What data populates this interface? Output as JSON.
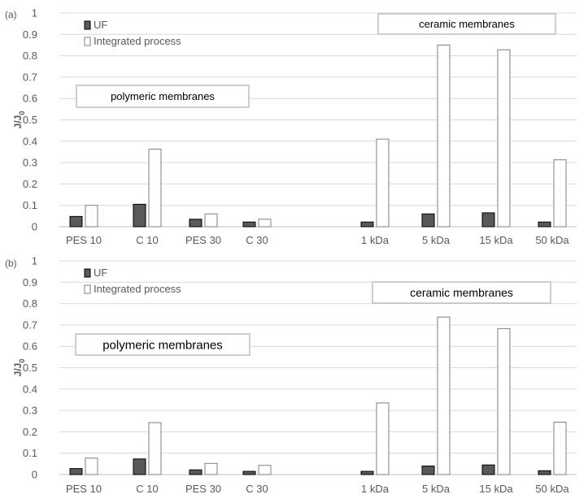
{
  "chart_data": [
    {
      "type": "bar",
      "panel_label": "(a)",
      "ylabel": "J/J",
      "ylabel_sub": "0",
      "ylim": [
        0,
        1
      ],
      "yticks": [
        "0",
        "0.1",
        "0.2",
        "0.3",
        "0.4",
        "0.5",
        "0.6",
        "0.7",
        "0.8",
        "0.9",
        "1"
      ],
      "grid": true,
      "legend_position": "top-left",
      "categories": [
        "PES 10",
        "C 10",
        "PES 30",
        "C 30",
        "",
        "1 kDa",
        "5 kDa",
        "15 kDa",
        "50 kDa"
      ],
      "series": [
        {
          "name": "UF",
          "color": "#595959",
          "values": [
            0.048,
            0.105,
            0.035,
            0.022,
            null,
            0.022,
            0.06,
            0.065,
            0.022
          ]
        },
        {
          "name": "Integrated process",
          "color": "#ffffff",
          "values": [
            0.1,
            0.363,
            0.06,
            0.035,
            null,
            0.41,
            0.85,
            0.828,
            0.313
          ]
        }
      ],
      "annotations": [
        "polymeric membranes",
        "ceramic membranes"
      ]
    },
    {
      "type": "bar",
      "panel_label": "(b)",
      "ylabel": "J/J",
      "ylabel_sub": "0",
      "ylim": [
        0,
        1
      ],
      "yticks": [
        "0",
        "0.1",
        "0.2",
        "0.3",
        "0.4",
        "0.5",
        "0.6",
        "0.7",
        "0.8",
        "0.9",
        "1"
      ],
      "grid": true,
      "legend_position": "top-left",
      "categories": [
        "PES 10",
        "C 10",
        "PES 30",
        "C 30",
        "",
        "1 kDa",
        "5 kDa",
        "15 kDa",
        "50 kDa"
      ],
      "series": [
        {
          "name": "UF",
          "color": "#595959",
          "values": [
            0.028,
            0.073,
            0.022,
            0.015,
            null,
            0.015,
            0.04,
            0.045,
            0.018
          ]
        },
        {
          "name": "Integrated process",
          "color": "#ffffff",
          "values": [
            0.077,
            0.243,
            0.052,
            0.043,
            null,
            0.335,
            0.737,
            0.683,
            0.245
          ]
        }
      ],
      "annotations": [
        "polymeric membranes",
        "ceramic membranes"
      ]
    }
  ]
}
